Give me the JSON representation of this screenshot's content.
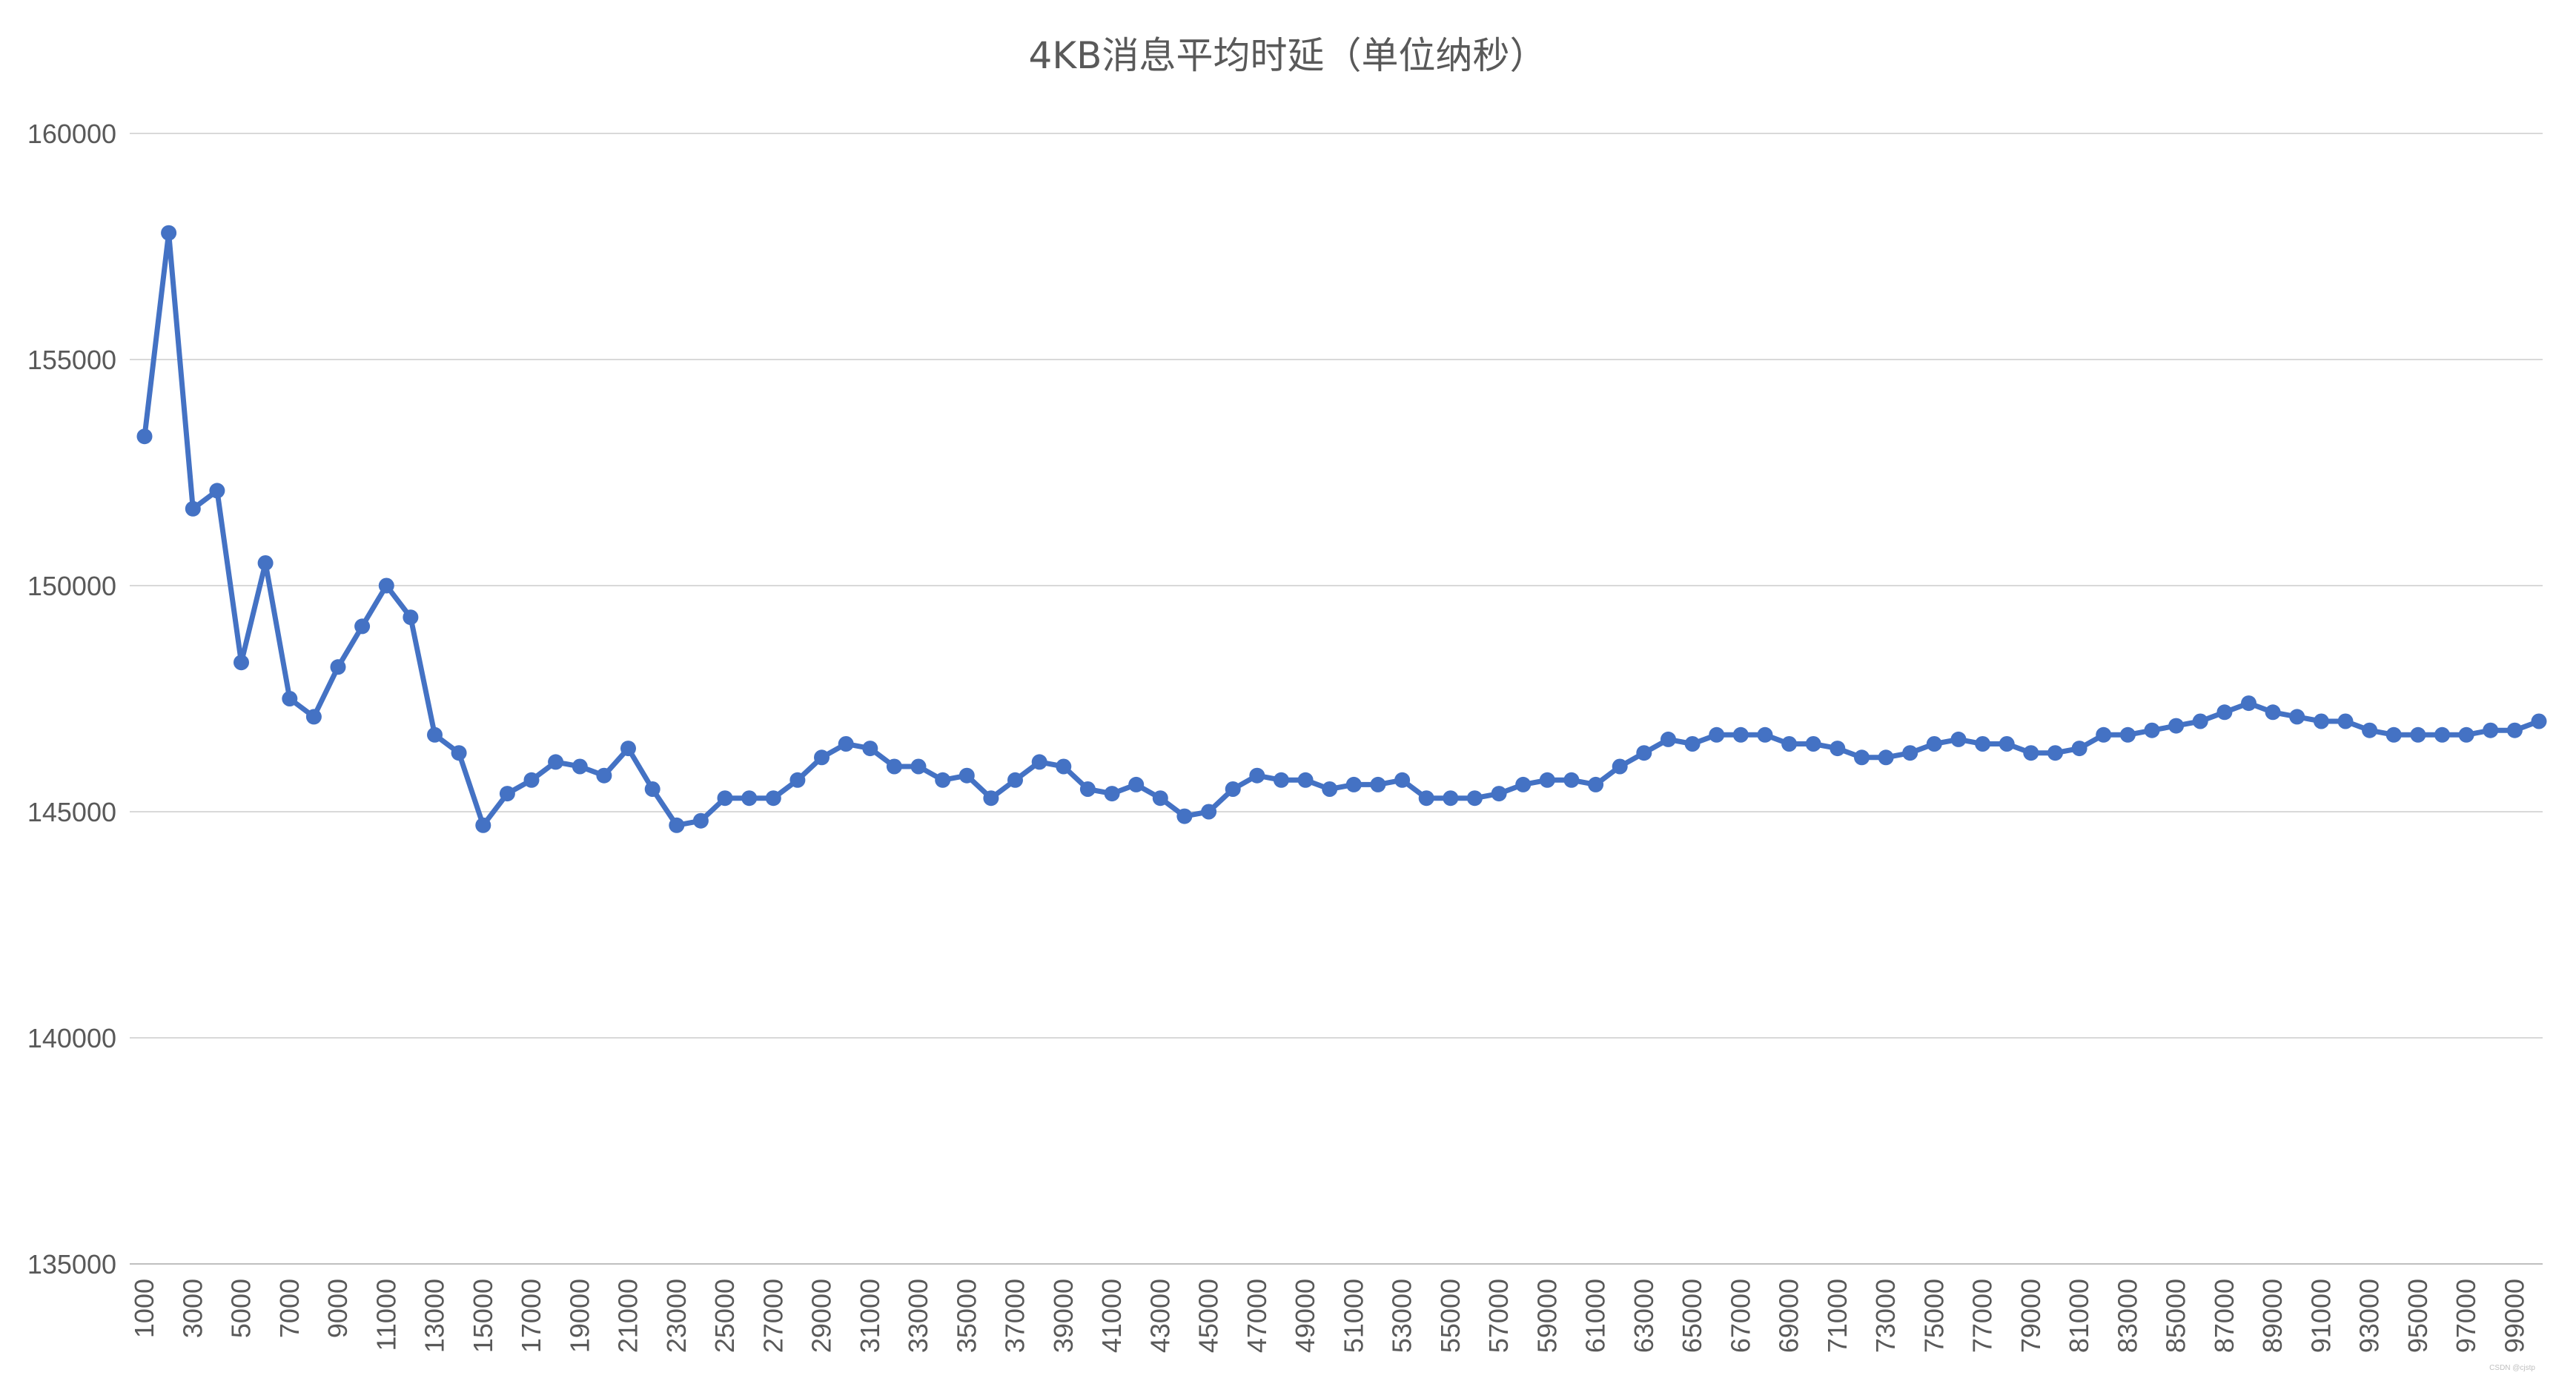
{
  "chart_data": {
    "type": "line",
    "title": "4KB消息平均时延（单位纳秒）",
    "xlabel": "",
    "ylabel": "",
    "ylim": [
      135000,
      160000
    ],
    "yticks": [
      "135000",
      "140000",
      "145000",
      "150000",
      "155000",
      "160000"
    ],
    "grid": true,
    "legend": "none",
    "x": [
      1000,
      2000,
      3000,
      4000,
      5000,
      6000,
      7000,
      8000,
      9000,
      10000,
      11000,
      12000,
      13000,
      14000,
      15000,
      16000,
      17000,
      18000,
      19000,
      20000,
      21000,
      22000,
      23000,
      24000,
      25000,
      26000,
      27000,
      28000,
      29000,
      30000,
      31000,
      32000,
      33000,
      34000,
      35000,
      36000,
      37000,
      38000,
      39000,
      40000,
      41000,
      42000,
      43000,
      44000,
      45000,
      46000,
      47000,
      48000,
      49000,
      50000,
      51000,
      52000,
      53000,
      54000,
      55000,
      56000,
      57000,
      58000,
      59000,
      60000,
      61000,
      62000,
      63000,
      64000,
      65000,
      66000,
      67000,
      68000,
      69000,
      70000,
      71000,
      72000,
      73000,
      74000,
      75000,
      76000,
      77000,
      78000,
      79000,
      80000,
      81000,
      82000,
      83000,
      84000,
      85000,
      86000,
      87000,
      88000,
      89000,
      90000,
      91000,
      92000,
      93000,
      94000,
      95000,
      96000,
      97000,
      98000,
      99000,
      100000
    ],
    "xtick_labels": [
      "1000",
      "3000",
      "5000",
      "7000",
      "9000",
      "11000",
      "13000",
      "15000",
      "17000",
      "19000",
      "21000",
      "23000",
      "25000",
      "27000",
      "29000",
      "31000",
      "33000",
      "35000",
      "37000",
      "39000",
      "41000",
      "43000",
      "45000",
      "47000",
      "49000",
      "51000",
      "53000",
      "55000",
      "57000",
      "59000",
      "61000",
      "63000",
      "65000",
      "67000",
      "69000",
      "71000",
      "73000",
      "75000",
      "77000",
      "79000",
      "81000",
      "83000",
      "85000",
      "87000",
      "89000",
      "91000",
      "93000",
      "95000",
      "97000",
      "99000"
    ],
    "series": [
      {
        "color": "#4472c4",
        "values": [
          153300,
          157800,
          151700,
          152100,
          148300,
          150500,
          147500,
          147100,
          148200,
          149100,
          150000,
          149300,
          146700,
          146300,
          144700,
          145400,
          145700,
          146100,
          146000,
          145800,
          146400,
          145500,
          144700,
          144800,
          145300,
          145300,
          145300,
          145700,
          146200,
          146500,
          146400,
          146000,
          146000,
          145700,
          145800,
          145300,
          145700,
          146100,
          146000,
          145500,
          145400,
          145600,
          145300,
          144900,
          145000,
          145500,
          145800,
          145700,
          145700,
          145500,
          145600,
          145600,
          145700,
          145300,
          145300,
          145300,
          145400,
          145600,
          145700,
          145700,
          145600,
          146000,
          146300,
          146600,
          146500,
          146700,
          146700,
          146700,
          146500,
          146500,
          146400,
          146200,
          146200,
          146300,
          146500,
          146600,
          146500,
          146500,
          146300,
          146300,
          146400,
          146700,
          146700,
          146800,
          146900,
          147000,
          147200,
          147400,
          147200,
          147100,
          147000,
          147000,
          146800,
          146700,
          146700,
          146700,
          146700,
          146800,
          146800,
          147000
        ]
      }
    ]
  },
  "watermark": "CSDN @cjstp"
}
